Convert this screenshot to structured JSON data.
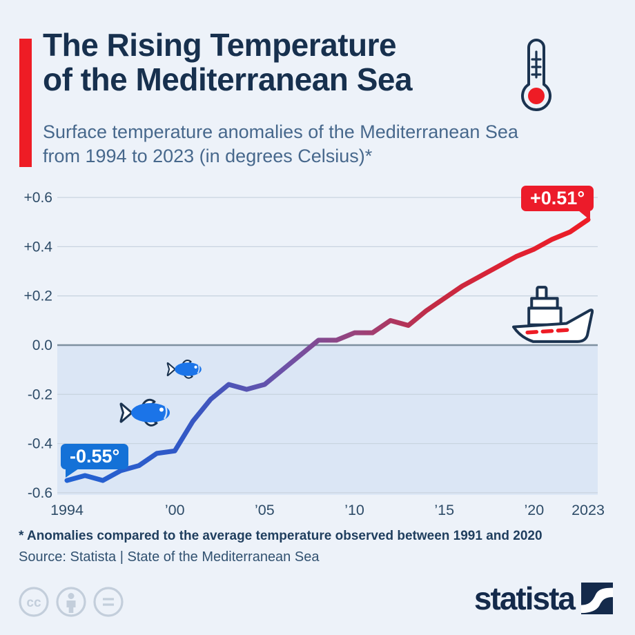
{
  "header": {
    "title_line1": "The Rising Temperature",
    "title_line2": "of the Mediterranean Sea",
    "subtitle_line1": "Surface temperature anomalies of the Mediterranean Sea",
    "subtitle_line2": "from 1994 to 2023 (in degrees Celsius)*"
  },
  "chart_data": {
    "type": "line",
    "title": "Surface temperature anomalies of the Mediterranean Sea from 1994 to 2023 (in degrees Celsius)",
    "x": [
      1994,
      1995,
      1996,
      1997,
      1998,
      1999,
      2000,
      2001,
      2002,
      2003,
      2004,
      2005,
      2006,
      2007,
      2008,
      2009,
      2010,
      2011,
      2012,
      2013,
      2014,
      2015,
      2016,
      2017,
      2018,
      2019,
      2020,
      2021,
      2022,
      2023
    ],
    "values": [
      -0.55,
      -0.53,
      -0.55,
      -0.51,
      -0.49,
      -0.44,
      -0.43,
      -0.31,
      -0.22,
      -0.16,
      -0.18,
      -0.16,
      -0.1,
      -0.04,
      0.02,
      0.02,
      0.05,
      0.05,
      0.1,
      0.08,
      0.14,
      0.19,
      0.24,
      0.28,
      0.32,
      0.36,
      0.39,
      0.43,
      0.46,
      0.51
    ],
    "ylim": [
      -0.6,
      0.6
    ],
    "grid": true,
    "legend_position": "none",
    "yticks": [
      {
        "value": 0.6,
        "label": "+0.6"
      },
      {
        "value": 0.4,
        "label": "+0.4"
      },
      {
        "value": 0.2,
        "label": "+0.2"
      },
      {
        "value": 0.0,
        "label": "0.0"
      },
      {
        "value": -0.2,
        "label": "-0.2"
      },
      {
        "value": -0.4,
        "label": "-0.4"
      },
      {
        "value": -0.6,
        "label": "-0.6"
      }
    ],
    "xticks": [
      {
        "year": 1994,
        "label": "1994"
      },
      {
        "year": 2000,
        "label": "’00"
      },
      {
        "year": 2005,
        "label": "’05"
      },
      {
        "year": 2010,
        "label": "’10"
      },
      {
        "year": 2015,
        "label": "’15"
      },
      {
        "year": 2020,
        "label": "’20"
      },
      {
        "year": 2023,
        "label": "2023"
      }
    ],
    "start_label": "-0.55°",
    "end_label": "+0.51°",
    "line_gradient": [
      {
        "offset": 0.0,
        "color": "#2262d3"
      },
      {
        "offset": 0.22,
        "color": "#3158c6"
      },
      {
        "offset": 0.42,
        "color": "#6e51a6"
      },
      {
        "offset": 0.56,
        "color": "#9a4279"
      },
      {
        "offset": 0.7,
        "color": "#c22b45"
      },
      {
        "offset": 0.84,
        "color": "#dd2233"
      },
      {
        "offset": 1.0,
        "color": "#ee1c25"
      }
    ]
  },
  "footer": {
    "footnote": "* Anomalies compared to the average temperature observed between 1991 and 2020",
    "source": "Source: Statista | State of the Mediterranean Sea"
  },
  "branding": {
    "logo_text": "statista",
    "license_icons": [
      "cc-icon",
      "attribution-person-icon",
      "no-derivatives-equals-icon"
    ]
  },
  "colors": {
    "background": "#edf2f9",
    "accent_red": "#ee1c25",
    "title": "#17304e",
    "subtitle": "#47688c",
    "axis_text": "#2e4c68",
    "grid": "#c9d4e0",
    "zero_line": "#7e90a0",
    "below_zero_fill": "#dbe6f5",
    "badge_blue": "#1471d7",
    "badge_red": "#ec1b2a",
    "badge_text": "#ffffff",
    "navy": "#1b3350",
    "fish_blue": "#1b74e8",
    "cc_gray": "#c3cedb",
    "logo_navy": "#142a4b",
    "footnote_text": "#1f3e5e",
    "source_text": "#315170"
  }
}
